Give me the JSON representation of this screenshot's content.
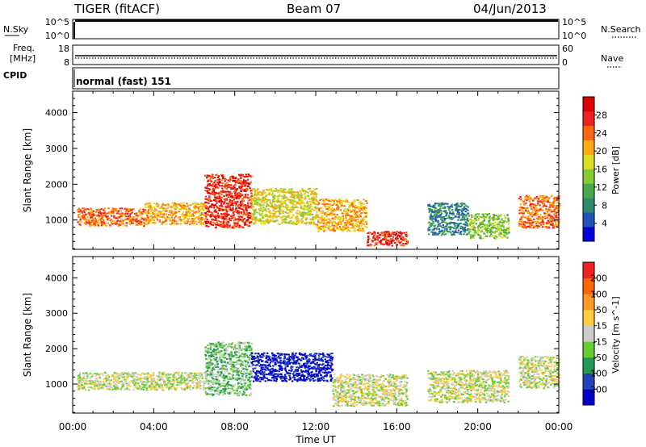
{
  "header": {
    "radar": "TIGER (fitACF)",
    "beam": "Beam 07",
    "date": "04/Jun/2013"
  },
  "top_panels": {
    "nsky_label": "N.Sky",
    "nsky_ticks": [
      "10^5",
      "10^0"
    ],
    "nsearch_label": "N.Search",
    "nsearch_ticks": [
      "10^5",
      "10^0"
    ],
    "freq_label_1": "Freq.",
    "freq_label_2": "[MHz]",
    "freq_ticks": [
      "18",
      "8"
    ],
    "nave_label": "Nave",
    "nave_ticks": [
      "60",
      "0"
    ],
    "cpid_label": "CPID",
    "cpid_text": "normal (fast) 151"
  },
  "chart_data": [
    {
      "type": "heatmap",
      "quantity": "Power",
      "ylabel": "Slant Range [km]",
      "ylim": [
        180,
        4600
      ],
      "yticks": [
        1000,
        2000,
        3000,
        4000
      ],
      "xlim": [
        0,
        24
      ],
      "colorbar_label": "Power [dB]",
      "colorbar_ticks": [
        "28",
        "24",
        "20",
        "16",
        "12",
        "8",
        "4"
      ],
      "colorbar_colors": [
        "#0000dd",
        "#2255bb",
        "#2a8a6a",
        "#4aa84a",
        "#88cc33",
        "#dddd22",
        "#ffaa11",
        "#ff6611",
        "#ee2222",
        "#dd0000"
      ],
      "echo_bands": [
        {
          "t0": 0.2,
          "t1": 3.5,
          "r0": 850,
          "r1": 1350,
          "level": 7
        },
        {
          "t0": 3.5,
          "t1": 6.5,
          "r0": 900,
          "r1": 1500,
          "level": 6
        },
        {
          "t0": 6.5,
          "t1": 8.8,
          "r0": 800,
          "r1": 2300,
          "level": 8
        },
        {
          "t0": 8.8,
          "t1": 12.0,
          "r0": 900,
          "r1": 1900,
          "level": 5
        },
        {
          "t0": 12.0,
          "t1": 14.5,
          "r0": 700,
          "r1": 1600,
          "level": 6
        },
        {
          "t0": 14.5,
          "t1": 16.5,
          "r0": 300,
          "r1": 700,
          "level": 8
        },
        {
          "t0": 17.5,
          "t1": 19.5,
          "r0": 600,
          "r1": 1500,
          "level": 2
        },
        {
          "t0": 19.5,
          "t1": 21.5,
          "r0": 500,
          "r1": 1200,
          "level": 4
        },
        {
          "t0": 22.0,
          "t1": 24.0,
          "r0": 800,
          "r1": 1700,
          "level": 7
        }
      ]
    },
    {
      "type": "heatmap",
      "quantity": "Velocity",
      "ylabel": "Slant Range [km]",
      "ylim": [
        180,
        4600
      ],
      "yticks": [
        1000,
        2000,
        3000,
        4000
      ],
      "xlim": [
        0,
        24
      ],
      "xticks": [
        "00:00",
        "04:00",
        "08:00",
        "12:00",
        "16:00",
        "20:00",
        "00:00"
      ],
      "xlabel": "Time UT",
      "colorbar_label": "Velocity [m s^-1]",
      "colorbar_ticks": [
        "200",
        "100",
        "50",
        "15",
        "-15",
        "-50",
        "-100",
        "-200"
      ],
      "colorbar_colors": [
        "#0000cc",
        "#2244bb",
        "#229955",
        "#66cc33",
        "#cccccc",
        "#ffcc44",
        "#ff9922",
        "#ff6600",
        "#ee2222"
      ],
      "echo_bands": [
        {
          "t0": 0.2,
          "t1": 6.5,
          "r0": 850,
          "r1": 1350,
          "level": 4
        },
        {
          "t0": 6.5,
          "t1": 8.8,
          "r0": 700,
          "r1": 2200,
          "level": 3
        },
        {
          "t0": 8.8,
          "t1": 12.8,
          "r0": 1100,
          "r1": 1900,
          "level": 0
        },
        {
          "t0": 12.8,
          "t1": 16.5,
          "r0": 400,
          "r1": 1300,
          "level": 4
        },
        {
          "t0": 17.5,
          "t1": 21.5,
          "r0": 500,
          "r1": 1400,
          "level": 4
        },
        {
          "t0": 22.0,
          "t1": 24.0,
          "r0": 900,
          "r1": 1800,
          "level": 4
        }
      ]
    }
  ]
}
